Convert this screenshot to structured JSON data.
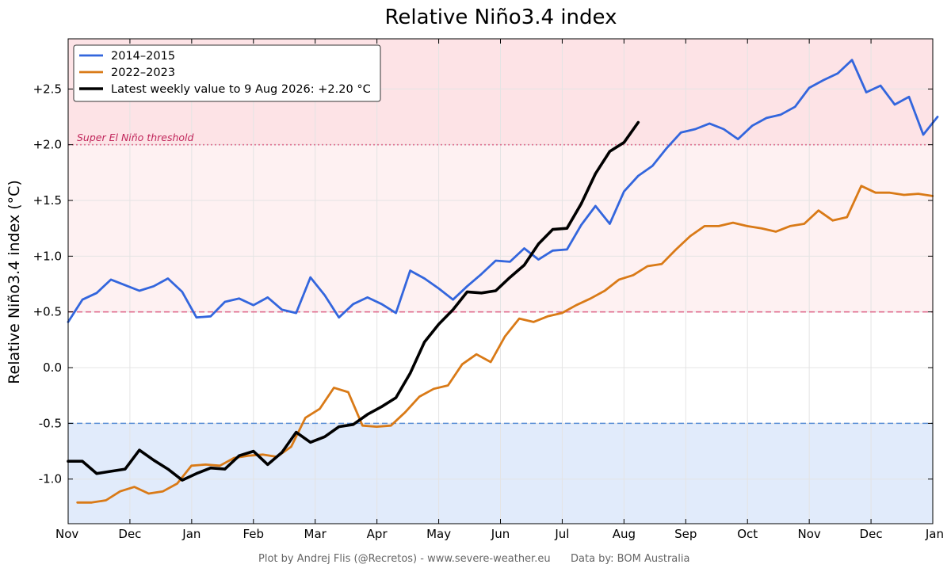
{
  "chart_data": {
    "type": "line",
    "title": "Relative Niño3.4 index",
    "ylabel": "Relative Niño3.4 index (°C)",
    "xlabel": "",
    "ylim": [
      -1.4,
      2.95
    ],
    "x_ticks": [
      "Nov",
      "Dec",
      "Jan",
      "Feb",
      "Mar",
      "Apr",
      "May",
      "Jun",
      "Jul",
      "Aug",
      "Sep",
      "Oct",
      "Nov",
      "Dec",
      "Jan"
    ],
    "y_ticks": [
      {
        "value": -1.0,
        "label": "-1.0"
      },
      {
        "value": -0.5,
        "label": "-0.5"
      },
      {
        "value": 0.0,
        "label": "0.0"
      },
      {
        "value": 0.5,
        "label": "+0.5"
      },
      {
        "value": 1.0,
        "label": "+1.0"
      },
      {
        "value": 1.5,
        "label": "+1.5"
      },
      {
        "value": 2.0,
        "label": "+2.0"
      },
      {
        "value": 2.5,
        "label": "+2.5"
      }
    ],
    "grid": true,
    "legend_position": "top-left",
    "thresholds": [
      {
        "value": 2.0,
        "color": "#e07090",
        "style": "dotted"
      },
      {
        "value": 0.5,
        "color": "#e07090",
        "style": "dashed"
      },
      {
        "value": -0.5,
        "color": "#5b8fd6",
        "style": "dashed"
      }
    ],
    "annotation": "Super El Niño threshold",
    "bands": [
      {
        "from": 2.0,
        "to": 2.95,
        "color": "#fde3e6"
      },
      {
        "from": 0.5,
        "to": 2.0,
        "color": "#fef1f2"
      },
      {
        "from": -1.4,
        "to": -0.5,
        "color": "#e1ebfb"
      }
    ],
    "series": [
      {
        "name": "2014–2015",
        "color": "#3366dd",
        "start_month": 0.0,
        "step_weeks": 1,
        "values": [
          0.41,
          0.61,
          0.67,
          0.79,
          0.74,
          0.69,
          0.73,
          0.8,
          0.68,
          0.45,
          0.46,
          0.59,
          0.62,
          0.56,
          0.63,
          0.52,
          0.49,
          0.81,
          0.65,
          0.45,
          0.57,
          0.63,
          0.57,
          0.49,
          0.87,
          0.8,
          0.71,
          0.61,
          0.73,
          0.84,
          0.96,
          0.95,
          1.07,
          0.97,
          1.05,
          1.06,
          1.28,
          1.45,
          1.29,
          1.58,
          1.72,
          1.81,
          1.97,
          2.11,
          2.14,
          2.19,
          2.14,
          2.05,
          2.17,
          2.24,
          2.27,
          2.34,
          2.51,
          2.58,
          2.64,
          2.76,
          2.47,
          2.53,
          2.36,
          2.43,
          2.09,
          2.25
        ]
      },
      {
        "name": "2022–2023",
        "color": "#d97a17",
        "start_month": 0.15,
        "step_weeks": 1,
        "values": [
          -1.21,
          -1.21,
          -1.19,
          -1.11,
          -1.07,
          -1.13,
          -1.11,
          -1.04,
          -0.88,
          -0.87,
          -0.88,
          -0.81,
          -0.79,
          -0.78,
          -0.8,
          -0.71,
          -0.45,
          -0.37,
          -0.18,
          -0.22,
          -0.52,
          -0.53,
          -0.52,
          -0.4,
          -0.26,
          -0.19,
          -0.16,
          0.03,
          0.12,
          0.05,
          0.28,
          0.44,
          0.41,
          0.46,
          0.49,
          0.56,
          0.62,
          0.69,
          0.79,
          0.83,
          0.91,
          0.93,
          1.06,
          1.18,
          1.27,
          1.27,
          1.3,
          1.27,
          1.25,
          1.22,
          1.27,
          1.29,
          1.41,
          1.32,
          1.35,
          1.63,
          1.57,
          1.57,
          1.55,
          1.56,
          1.54
        ]
      },
      {
        "name": "Latest weekly value to 9 Aug 2026: +2.20 °C",
        "color": "#000000",
        "start_month": 0.0,
        "step_weeks": 1,
        "values": [
          -0.84,
          -0.84,
          -0.95,
          -0.93,
          -0.91,
          -0.74,
          -0.83,
          -0.91,
          -1.01,
          -0.95,
          -0.9,
          -0.91,
          -0.79,
          -0.75,
          -0.87,
          -0.76,
          -0.58,
          -0.67,
          -0.62,
          -0.53,
          -0.51,
          -0.42,
          -0.35,
          -0.27,
          -0.05,
          0.23,
          0.39,
          0.52,
          0.68,
          0.67,
          0.69,
          0.81,
          0.92,
          1.11,
          1.24,
          1.25,
          1.47,
          1.74,
          1.94,
          2.02,
          2.2
        ]
      }
    ]
  },
  "footer": {
    "credit": "Plot by Andrej Flis (@Recretos) - www.severe-weather.eu",
    "data_source": "Data by: BOM Australia"
  }
}
